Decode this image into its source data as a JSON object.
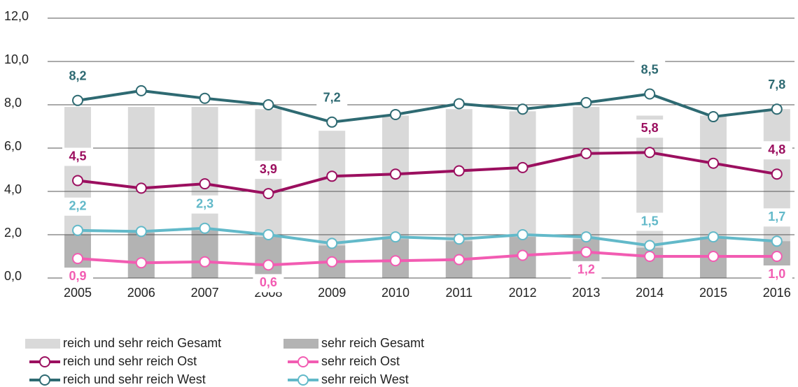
{
  "chart_data": {
    "type": "bar-line",
    "categories": [
      "2005",
      "2006",
      "2007",
      "2008",
      "2009",
      "2010",
      "2011",
      "2012",
      "2013",
      "2014",
      "2015",
      "2016"
    ],
    "ylim": [
      0,
      12
    ],
    "yticks": [
      {
        "value": 0,
        "label": "0,0"
      },
      {
        "value": 2,
        "label": "2,0"
      },
      {
        "value": 4,
        "label": "4,0"
      },
      {
        "value": 6,
        "label": "6,0"
      },
      {
        "value": 8,
        "label": "8,0"
      },
      {
        "value": 10,
        "label": "10,0"
      },
      {
        "value": 12,
        "label": "12,0"
      }
    ],
    "grid": true,
    "bars": [
      {
        "name": "reich und sehr reich Gesamt",
        "color": "#d9d9d9",
        "values": [
          7.9,
          7.9,
          7.9,
          7.8,
          6.8,
          7.5,
          7.8,
          7.7,
          7.9,
          7.5,
          7.5,
          7.8
        ]
      },
      {
        "name": "sehr reich Gesamt",
        "color": "#b3b3b3",
        "values": [
          2.0,
          2.1,
          2.2,
          1.9,
          1.5,
          1.8,
          1.7,
          1.9,
          1.8,
          1.4,
          1.9,
          1.7
        ]
      }
    ],
    "series": [
      {
        "name": "reich und sehr reich Ost",
        "color": "#9b0f5f",
        "values": [
          4.5,
          4.15,
          4.35,
          3.9,
          4.7,
          4.8,
          4.95,
          5.1,
          5.75,
          5.8,
          5.3,
          4.8
        ],
        "value_labels": [
          "4,5",
          null,
          null,
          "3,9",
          null,
          null,
          null,
          null,
          null,
          "5,8",
          null,
          "4,8"
        ]
      },
      {
        "name": "sehr reich Ost",
        "color": "#f25cb2",
        "values": [
          0.9,
          0.7,
          0.75,
          0.6,
          0.75,
          0.8,
          0.85,
          1.05,
          1.2,
          1.0,
          1.0,
          1.0
        ],
        "value_labels": [
          "0,9",
          null,
          null,
          "0,6",
          null,
          null,
          null,
          null,
          "1,2",
          null,
          null,
          "1,0"
        ]
      },
      {
        "name": "reich und sehr reich West",
        "color": "#2e6a72",
        "values": [
          8.2,
          8.65,
          8.3,
          8.0,
          7.2,
          7.55,
          8.05,
          7.8,
          8.1,
          8.5,
          7.45,
          7.8
        ],
        "value_labels": [
          "8,2",
          null,
          null,
          null,
          "7,2",
          null,
          null,
          null,
          null,
          "8,5",
          null,
          "7,8"
        ]
      },
      {
        "name": "sehr reich West",
        "color": "#62b9c9",
        "values": [
          2.2,
          2.15,
          2.3,
          2.0,
          1.6,
          1.9,
          1.8,
          2.0,
          1.9,
          1.5,
          1.9,
          1.7
        ],
        "value_labels": [
          "2,2",
          null,
          "2,3",
          null,
          null,
          null,
          null,
          null,
          null,
          "1,5",
          null,
          "1,7"
        ]
      }
    ]
  }
}
